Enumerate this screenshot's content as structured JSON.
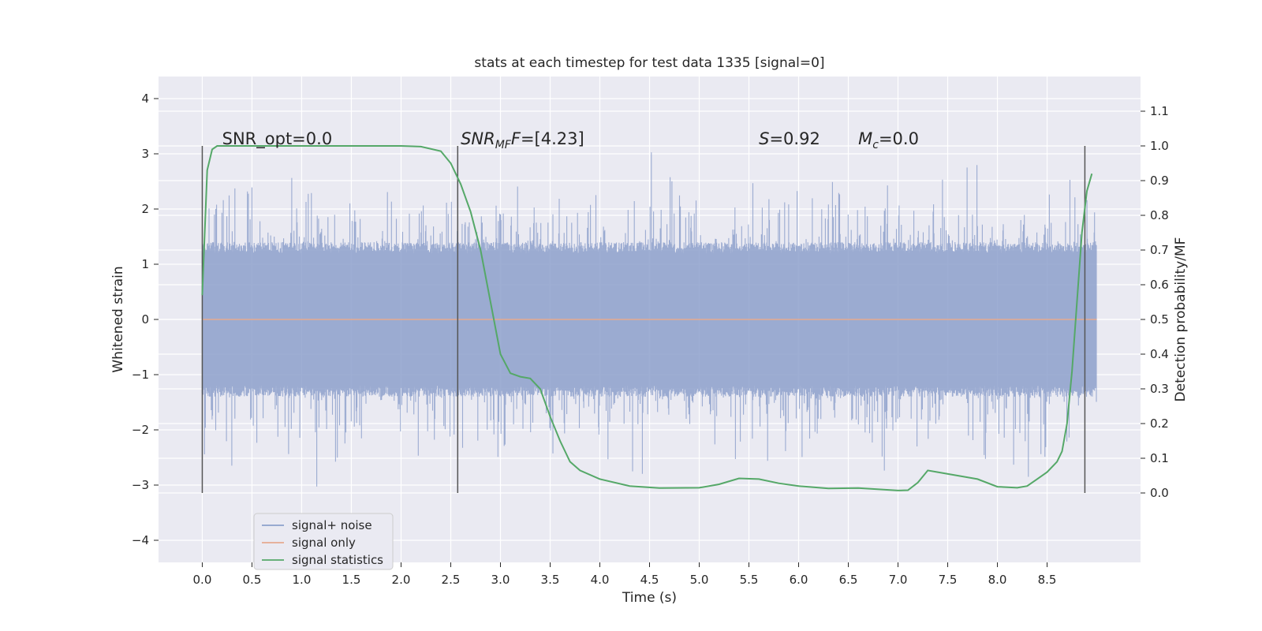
{
  "chart_data": {
    "type": "line",
    "title": "stats at each timestep for test data 1335 [signal=0]",
    "xlabel": "Time (s)",
    "ylabel": "Whitened strain",
    "ylabel_right": "Detection probability/MF",
    "xlim": [
      -0.44,
      9.44
    ],
    "ylim": [
      -4.4,
      4.4
    ],
    "ylim_right": [
      -0.2,
      1.2
    ],
    "x_ticks": [
      "0.0",
      "0.5",
      "1.0",
      "1.5",
      "2.0",
      "2.5",
      "3.0",
      "3.5",
      "4.0",
      "4.5",
      "5.0",
      "5.5",
      "6.0",
      "6.5",
      "7.0",
      "7.5",
      "8.0",
      "8.5"
    ],
    "y_ticks": [
      "4",
      "3",
      "2",
      "1",
      "0",
      "−1",
      "−2",
      "−3",
      "−4"
    ],
    "y_right_ticks": [
      "1.1",
      "1.0",
      "0.9",
      "0.8",
      "0.7",
      "0.6",
      "0.5",
      "0.4",
      "0.3",
      "0.2",
      "0.1",
      "0.0"
    ],
    "grid": true,
    "legend_position": "lower-left",
    "annotations": [
      {
        "id": "snr-opt",
        "text": "SNR_opt=0.0"
      },
      {
        "id": "snr-mf",
        "text": "SNR",
        "sub": "MF",
        "rest": "=[4.23]"
      },
      {
        "id": "s-val",
        "text": "S",
        "rest": "=0.92"
      },
      {
        "id": "mc-val",
        "text": "M",
        "sub": "c",
        "rest": "=0.0"
      }
    ],
    "vertical_markers_x": [
      0.0,
      2.57,
      8.88
    ],
    "noise_x_range": [
      0.0,
      9.0
    ],
    "noise_envelope_abs": 4.0,
    "series": [
      {
        "name": "signal+ noise",
        "color": "#8da0cb",
        "axis": "left",
        "note_values": "dense noise band approx ±1.3 core with spikes to ±4"
      },
      {
        "name": "signal only",
        "color": "#e5a98f",
        "axis": "left",
        "x": [
          0.0,
          9.0
        ],
        "y": [
          0.0,
          0.0
        ]
      },
      {
        "name": "signal statistics",
        "color": "#55a868",
        "axis": "right",
        "x": [
          0.0,
          0.05,
          0.1,
          0.15,
          0.2,
          0.5,
          1.0,
          1.5,
          2.0,
          2.2,
          2.4,
          2.5,
          2.6,
          2.7,
          2.8,
          2.9,
          3.0,
          3.1,
          3.2,
          3.3,
          3.4,
          3.5,
          3.6,
          3.7,
          3.8,
          4.0,
          4.3,
          4.6,
          5.0,
          5.2,
          5.4,
          5.6,
          5.8,
          6.0,
          6.3,
          6.6,
          7.0,
          7.1,
          7.2,
          7.3,
          7.4,
          7.6,
          7.8,
          8.0,
          8.2,
          8.3,
          8.4,
          8.5,
          8.6,
          8.65,
          8.7,
          8.75,
          8.8,
          8.85,
          8.9,
          8.95
        ],
        "y": [
          0.57,
          0.93,
          0.99,
          1.0,
          1.0,
          1.0,
          1.0,
          1.0,
          1.0,
          0.998,
          0.985,
          0.95,
          0.89,
          0.81,
          0.7,
          0.55,
          0.4,
          0.345,
          0.335,
          0.33,
          0.3,
          0.22,
          0.15,
          0.09,
          0.065,
          0.04,
          0.02,
          0.014,
          0.015,
          0.025,
          0.042,
          0.04,
          0.028,
          0.02,
          0.013,
          0.014,
          0.007,
          0.008,
          0.03,
          0.065,
          0.06,
          0.05,
          0.04,
          0.018,
          0.015,
          0.02,
          0.04,
          0.06,
          0.09,
          0.12,
          0.2,
          0.35,
          0.55,
          0.75,
          0.87,
          0.92
        ]
      }
    ]
  }
}
